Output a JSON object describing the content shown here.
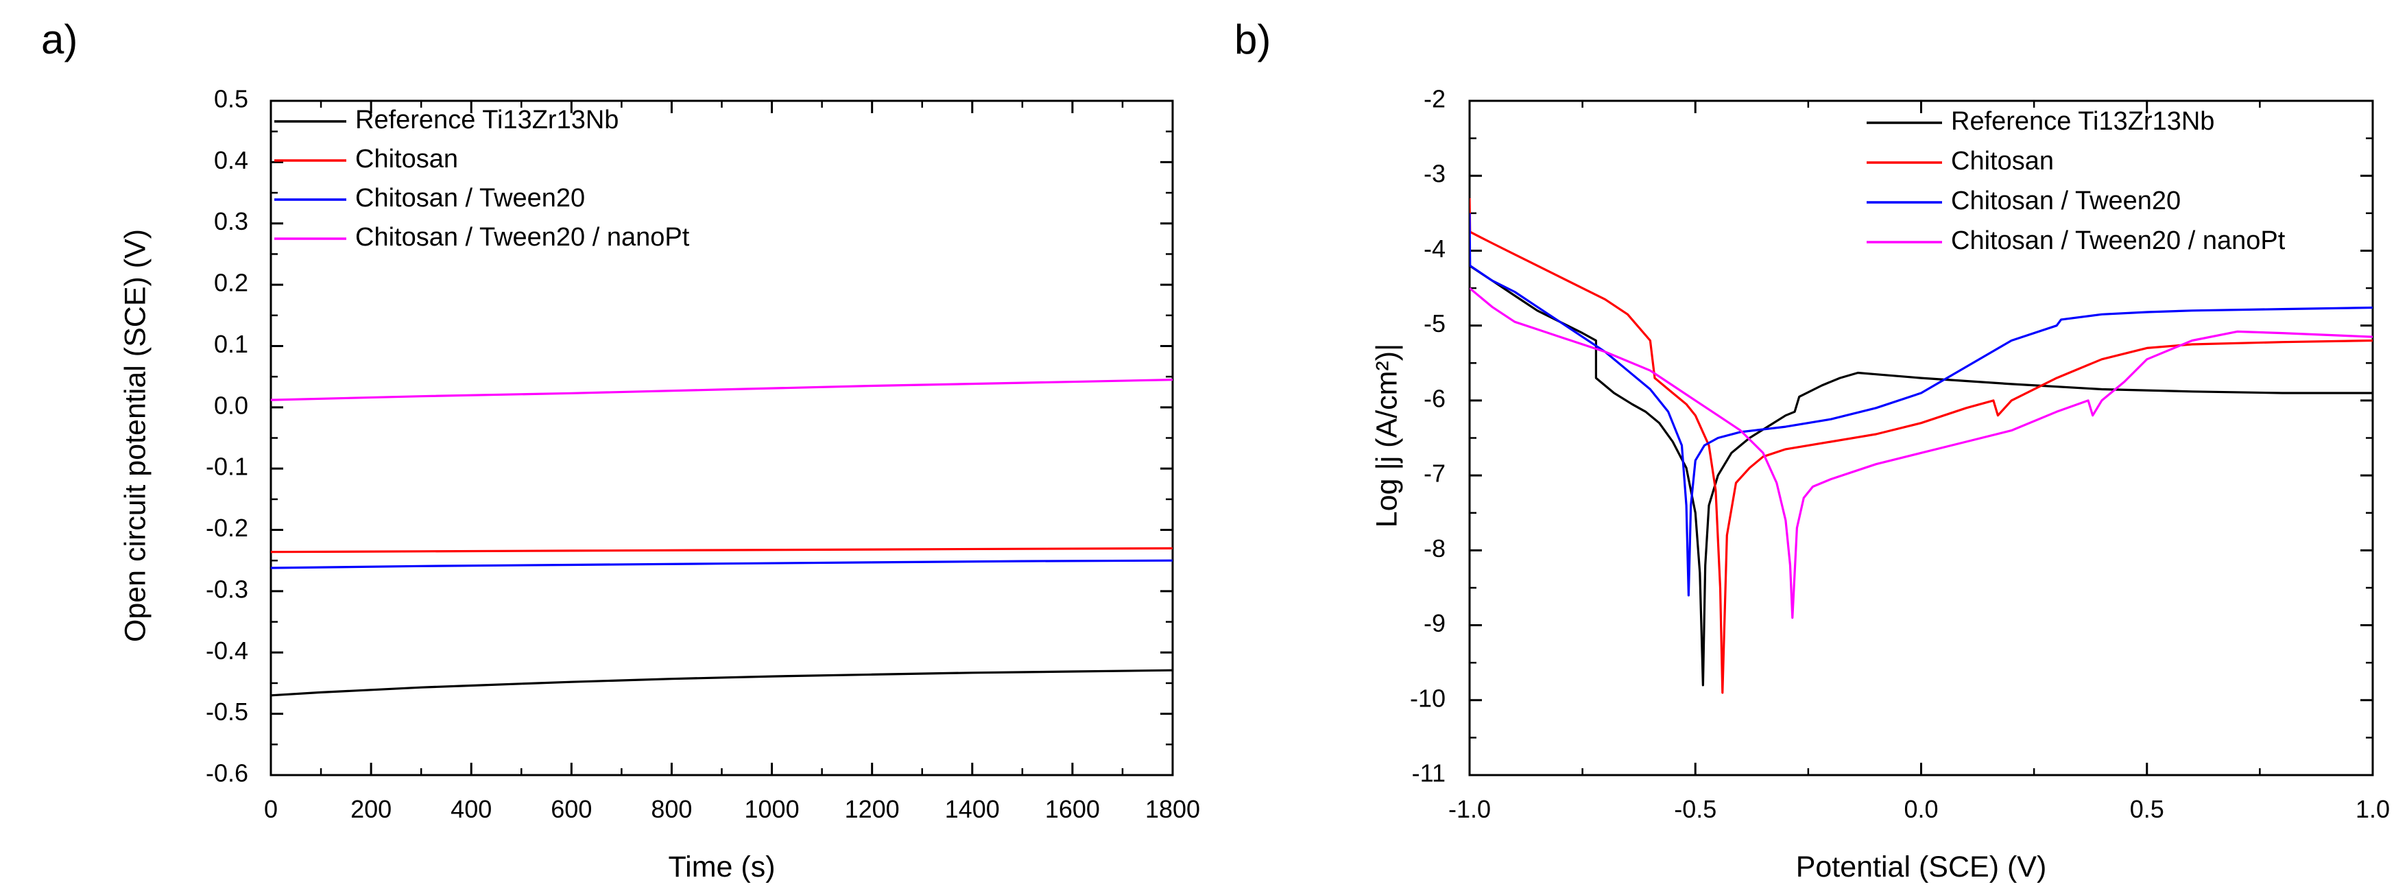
{
  "chart_data": [
    {
      "panel": "a)",
      "type": "line",
      "title": "",
      "xlabel": "Time (s)",
      "ylabel": "Open circuit potential (SCE) (V)",
      "xlim": [
        0,
        1800
      ],
      "ylim": [
        -0.6,
        0.5
      ],
      "x_ticks": [
        0,
        200,
        400,
        600,
        800,
        1000,
        1200,
        1400,
        1600,
        1800
      ],
      "x_tick_labels": [
        "0",
        "200",
        "400",
        "600",
        "800",
        "1000",
        "1200",
        "1400",
        "1600",
        "1800"
      ],
      "y_ticks": [
        -0.6,
        -0.5,
        -0.4,
        -0.3,
        -0.2,
        -0.1,
        0.0,
        0.1,
        0.2,
        0.3,
        0.4,
        0.5
      ],
      "y_tick_labels": [
        "-0.6",
        "-0.5",
        "-0.4",
        "-0.3",
        "-0.2",
        "-0.1",
        "0.0",
        "0.1",
        "0.2",
        "0.3",
        "0.4",
        "0.5"
      ],
      "legend_position": "top-left",
      "grid": false,
      "series": [
        {
          "name": "Reference Ti13Zr13Nb",
          "color": "#000000",
          "x": [
            0,
            100,
            200,
            300,
            400,
            500,
            600,
            800,
            1000,
            1200,
            1400,
            1600,
            1800
          ],
          "y": [
            -0.47,
            -0.465,
            -0.461,
            -0.457,
            -0.454,
            -0.451,
            -0.448,
            -0.443,
            -0.439,
            -0.436,
            -0.433,
            -0.431,
            -0.429
          ]
        },
        {
          "name": "Chitosan",
          "color": "#ff0000",
          "x": [
            0,
            300,
            600,
            900,
            1200,
            1500,
            1800
          ],
          "y": [
            -0.236,
            -0.235,
            -0.234,
            -0.233,
            -0.232,
            -0.231,
            -0.23
          ]
        },
        {
          "name": "Chitosan / Tween20",
          "color": "#0000ff",
          "x": [
            0,
            300,
            600,
            900,
            1200,
            1500,
            1800
          ],
          "y": [
            -0.262,
            -0.259,
            -0.257,
            -0.255,
            -0.253,
            -0.251,
            -0.25
          ]
        },
        {
          "name": "Chitosan / Tween20 / nanoPt",
          "color": "#ff00ff",
          "x": [
            0,
            300,
            600,
            900,
            1200,
            1500,
            1800
          ],
          "y": [
            0.012,
            0.018,
            0.023,
            0.029,
            0.035,
            0.04,
            0.045
          ]
        }
      ]
    },
    {
      "panel": "b)",
      "type": "line",
      "title": "",
      "xlabel": "Potential (SCE) (V)",
      "ylabel": "Log |j (A/cm²)|",
      "xlim": [
        -1.0,
        1.0
      ],
      "ylim": [
        -11,
        -2
      ],
      "x_ticks": [
        -1.0,
        -0.5,
        0.0,
        0.5,
        1.0
      ],
      "x_tick_labels": [
        "-1.0",
        "-0.5",
        "0.0",
        "0.5",
        "1.0"
      ],
      "y_ticks": [
        -11,
        -10,
        -9,
        -8,
        -7,
        -6,
        -5,
        -4,
        -3,
        -2
      ],
      "y_tick_labels": [
        "-11",
        "-10",
        "-9",
        "-8",
        "-7",
        "-6",
        "-5",
        "-4",
        "-3",
        "-2"
      ],
      "legend_position": "top-right",
      "grid": false,
      "series": [
        {
          "name": "Reference Ti13Zr13Nb",
          "color": "#000000",
          "x": [
            -1.0,
            -0.95,
            -0.9,
            -0.85,
            -0.8,
            -0.75,
            -0.72,
            -0.72,
            -0.68,
            -0.64,
            -0.61,
            -0.58,
            -0.55,
            -0.52,
            -0.5,
            -0.49,
            -0.483,
            -0.478,
            -0.47,
            -0.45,
            -0.42,
            -0.38,
            -0.34,
            -0.3,
            -0.28,
            -0.27,
            -0.22,
            -0.18,
            -0.14,
            -0.1,
            0.0,
            0.2,
            0.4,
            0.6,
            0.8,
            1.0
          ],
          "y": [
            -4.2,
            -4.4,
            -4.6,
            -4.8,
            -4.95,
            -5.1,
            -5.2,
            -5.7,
            -5.9,
            -6.05,
            -6.15,
            -6.3,
            -6.55,
            -6.9,
            -7.5,
            -8.3,
            -9.8,
            -8.2,
            -7.4,
            -7.0,
            -6.7,
            -6.5,
            -6.35,
            -6.2,
            -6.15,
            -5.95,
            -5.8,
            -5.7,
            -5.63,
            -5.65,
            -5.7,
            -5.78,
            -5.85,
            -5.88,
            -5.9,
            -5.9
          ]
        },
        {
          "name": "Chitosan",
          "color": "#ff0000",
          "x": [
            -1.0,
            -0.999,
            -0.95,
            -0.9,
            -0.85,
            -0.8,
            -0.75,
            -0.7,
            -0.65,
            -0.6,
            -0.59,
            -0.55,
            -0.52,
            -0.5,
            -0.47,
            -0.455,
            -0.445,
            -0.44,
            -0.43,
            -0.41,
            -0.38,
            -0.35,
            -0.3,
            -0.2,
            -0.1,
            0.0,
            0.1,
            0.16,
            0.17,
            0.2,
            0.3,
            0.4,
            0.5,
            0.6,
            0.8,
            1.0
          ],
          "y": [
            -3.3,
            -3.75,
            -3.9,
            -4.05,
            -4.2,
            -4.35,
            -4.5,
            -4.65,
            -4.85,
            -5.2,
            -5.7,
            -5.9,
            -6.05,
            -6.2,
            -6.6,
            -7.2,
            -8.5,
            -9.9,
            -7.8,
            -7.1,
            -6.9,
            -6.75,
            -6.65,
            -6.55,
            -6.45,
            -6.3,
            -6.1,
            -6.0,
            -6.2,
            -6.0,
            -5.7,
            -5.45,
            -5.3,
            -5.25,
            -5.22,
            -5.2
          ]
        },
        {
          "name": "Chitosan / Tween20",
          "color": "#0000ff",
          "x": [
            -1.0,
            -0.999,
            -0.95,
            -0.9,
            -0.85,
            -0.8,
            -0.75,
            -0.7,
            -0.65,
            -0.6,
            -0.56,
            -0.53,
            -0.52,
            -0.515,
            -0.51,
            -0.5,
            -0.48,
            -0.45,
            -0.4,
            -0.3,
            -0.2,
            -0.1,
            0.0,
            0.1,
            0.2,
            0.3,
            0.31,
            0.4,
            0.5,
            0.6,
            0.8,
            1.0
          ],
          "y": [
            -3.5,
            -4.2,
            -4.4,
            -4.55,
            -4.75,
            -4.95,
            -5.15,
            -5.35,
            -5.6,
            -5.85,
            -6.15,
            -6.6,
            -7.4,
            -8.6,
            -7.4,
            -6.8,
            -6.6,
            -6.5,
            -6.42,
            -6.35,
            -6.25,
            -6.1,
            -5.9,
            -5.55,
            -5.2,
            -5.0,
            -4.92,
            -4.85,
            -4.82,
            -4.8,
            -4.78,
            -4.76
          ]
        },
        {
          "name": "Chitosan / Tween20 / nanoPt",
          "color": "#ff00ff",
          "x": [
            -1.0,
            -0.95,
            -0.9,
            -0.85,
            -0.8,
            -0.7,
            -0.6,
            -0.55,
            -0.5,
            -0.45,
            -0.4,
            -0.35,
            -0.32,
            -0.3,
            -0.29,
            -0.285,
            -0.28,
            -0.275,
            -0.26,
            -0.24,
            -0.2,
            -0.15,
            -0.1,
            0.0,
            0.1,
            0.2,
            0.3,
            0.37,
            0.38,
            0.4,
            0.45,
            0.5,
            0.6,
            0.7,
            0.8,
            1.0
          ],
          "y": [
            -4.5,
            -4.75,
            -4.95,
            -5.05,
            -5.15,
            -5.35,
            -5.6,
            -5.8,
            -6.0,
            -6.2,
            -6.4,
            -6.7,
            -7.1,
            -7.6,
            -8.2,
            -8.9,
            -8.3,
            -7.7,
            -7.3,
            -7.15,
            -7.05,
            -6.95,
            -6.85,
            -6.7,
            -6.55,
            -6.4,
            -6.15,
            -6.0,
            -6.2,
            -6.0,
            -5.75,
            -5.45,
            -5.2,
            -5.08,
            -5.1,
            -5.15
          ]
        }
      ]
    }
  ]
}
